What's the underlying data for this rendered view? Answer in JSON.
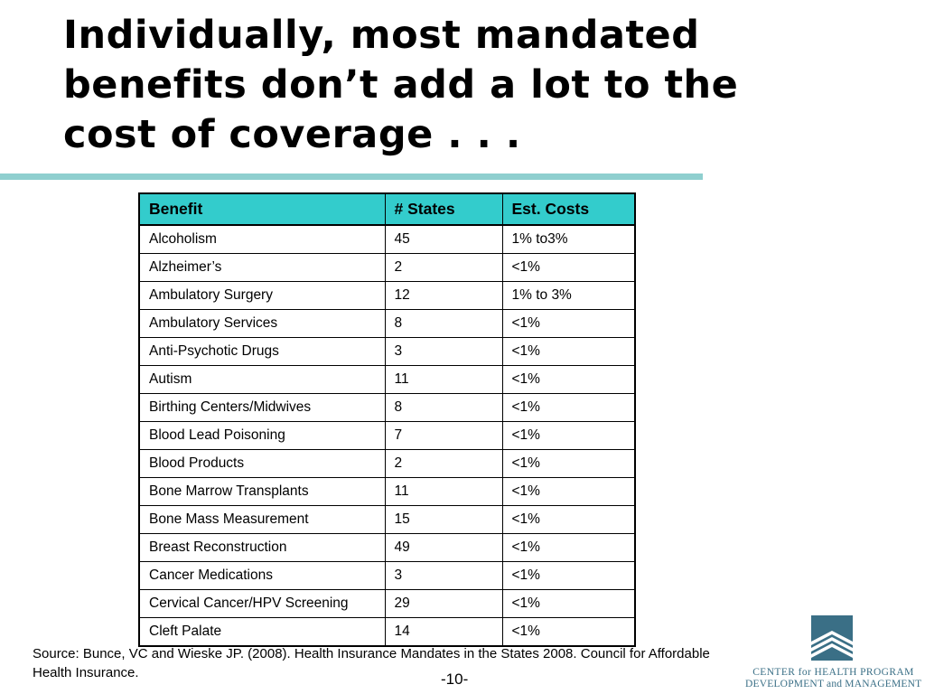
{
  "slide": {
    "title": "Individually, most mandated benefits don’t add a lot to the cost of coverage . . .",
    "source": "Source: Bunce, VC and Wieske JP. (2008). Health Insurance Mandates in the States 2008. Council for Affordable Health Insurance.",
    "page_number": "-10-"
  },
  "table": {
    "headers": [
      "Benefit",
      "# States",
      "Est. Costs"
    ],
    "rows": [
      [
        "Alcoholism",
        "45",
        "1% to3%"
      ],
      [
        "Alzheimer’s",
        "2",
        "<1%"
      ],
      [
        "Ambulatory Surgery",
        "12",
        "1% to 3%"
      ],
      [
        "Ambulatory Services",
        "8",
        "<1%"
      ],
      [
        "Anti-Psychotic Drugs",
        "3",
        "<1%"
      ],
      [
        "Autism",
        "11",
        "<1%"
      ],
      [
        "Birthing Centers/Midwives",
        "8",
        "<1%"
      ],
      [
        "Blood Lead Poisoning",
        "7",
        "<1%"
      ],
      [
        "Blood Products",
        "2",
        "<1%"
      ],
      [
        "Bone Marrow Transplants",
        "11",
        "<1%"
      ],
      [
        "Bone Mass Measurement",
        "15",
        "<1%"
      ],
      [
        "Breast Reconstruction",
        "49",
        "<1%"
      ],
      [
        "Cancer Medications",
        "3",
        "<1%"
      ],
      [
        "Cervical Cancer/HPV Screening",
        "29",
        "<1%"
      ],
      [
        "Cleft Palate",
        "14",
        "<1%"
      ]
    ]
  },
  "logo": {
    "line1": "CENTER for HEALTH PROGRAM",
    "line2": "DEVELOPMENT and MANAGEMENT",
    "icon": "building-icon"
  },
  "colors": {
    "header_fill": "#33cccc",
    "rule": "#8fcfcf",
    "logo": "#3a6f86"
  }
}
